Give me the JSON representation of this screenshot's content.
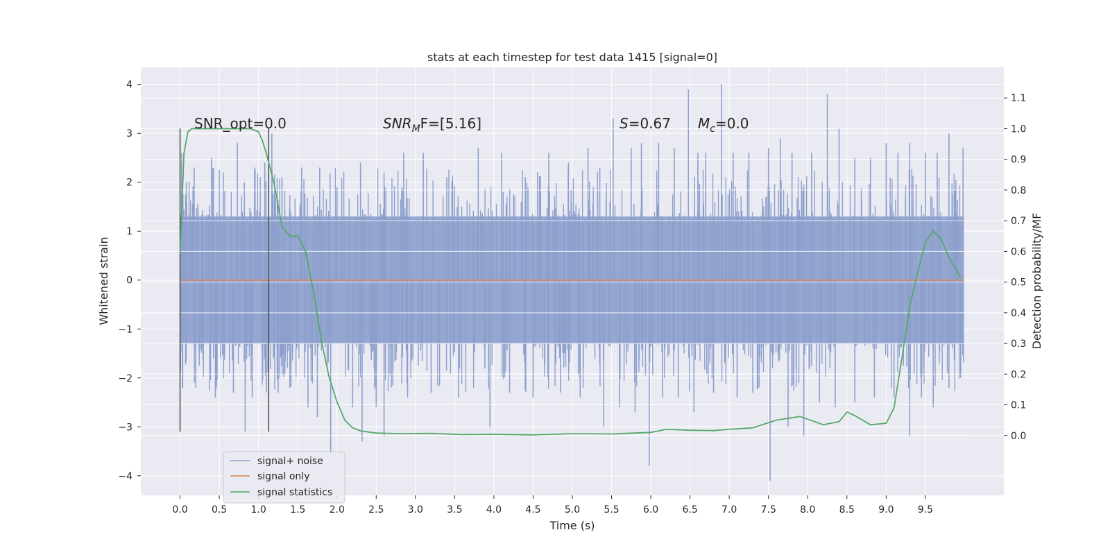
{
  "chart_data": {
    "type": "line",
    "title": "stats at each timestep for test data 1415 [signal=0]",
    "xlabel": "Time (s)",
    "ylabel_left": "Whitened strain",
    "ylabel_right": "Detection probability/MF",
    "xlim": [
      -0.5,
      10.5
    ],
    "ylim_left": [
      -4.4,
      4.35
    ],
    "ylim_right": [
      -0.195,
      1.2
    ],
    "x_ticks": [
      "0.0",
      "0.5",
      "1.0",
      "1.5",
      "2.0",
      "2.5",
      "3.0",
      "3.5",
      "4.0",
      "4.5",
      "5.0",
      "5.5",
      "6.0",
      "6.5",
      "7.0",
      "7.5",
      "8.0",
      "8.5",
      "9.0",
      "9.5"
    ],
    "y_ticks_left": [
      "4",
      "3",
      "2",
      "1",
      "0",
      "−1",
      "−2",
      "−3",
      "−4"
    ],
    "y_ticks_right": [
      "1.1",
      "1.0",
      "0.9",
      "0.8",
      "0.7",
      "0.6",
      "0.5",
      "0.4",
      "0.3",
      "0.2",
      "0.1",
      "0.0"
    ],
    "grid": true,
    "legend_position": "lower-left",
    "annotations": {
      "snr_opt": "SNR_opt=0.0",
      "snr_mf_main": "SNR",
      "snr_mf_sub": "M",
      "snr_mf_rest": "F=[5.16]",
      "s_main": "S",
      "s_rest": "=0.67",
      "mc_main": "M",
      "mc_sub": "c",
      "mc_rest": "=0.0"
    },
    "vertical_markers": [
      0.0,
      1.13
    ],
    "series": [
      {
        "name": "signal+ noise",
        "color": "#8c9fcc",
        "x_range": [
          0.0,
          9.99
        ],
        "band": [
          -1.3,
          1.3
        ],
        "spikes_up": [
          [
            0.02,
            2.6
          ],
          [
            0.08,
            2.0
          ],
          [
            0.18,
            2.3
          ],
          [
            0.4,
            2.5
          ],
          [
            0.55,
            2.2
          ],
          [
            0.73,
            2.8
          ],
          [
            0.82,
            2.0
          ],
          [
            0.95,
            2.3
          ],
          [
            1.08,
            2.4
          ],
          [
            1.17,
            3.0
          ],
          [
            1.3,
            2.1
          ],
          [
            1.55,
            2.3
          ],
          [
            1.78,
            2.3
          ],
          [
            2.0,
            1.9
          ],
          [
            2.3,
            2.4
          ],
          [
            2.6,
            2.2
          ],
          [
            2.85,
            2.6
          ],
          [
            3.1,
            2.6
          ],
          [
            3.4,
            2.1
          ],
          [
            3.8,
            2.7
          ],
          [
            4.1,
            2.6
          ],
          [
            4.4,
            2.1
          ],
          [
            4.7,
            2.6
          ],
          [
            4.95,
            2.4
          ],
          [
            5.2,
            2.7
          ],
          [
            5.35,
            2.3
          ],
          [
            5.52,
            3.3
          ],
          [
            5.75,
            2.7
          ],
          [
            5.88,
            2.8
          ],
          [
            6.1,
            2.8
          ],
          [
            6.3,
            2.7
          ],
          [
            6.48,
            3.9
          ],
          [
            6.6,
            2.6
          ],
          [
            6.7,
            2.6
          ],
          [
            6.9,
            4.0
          ],
          [
            7.05,
            2.6
          ],
          [
            7.25,
            2.6
          ],
          [
            7.5,
            2.7
          ],
          [
            7.65,
            2.9
          ],
          [
            7.8,
            2.6
          ],
          [
            8.05,
            2.6
          ],
          [
            8.25,
            3.8
          ],
          [
            8.4,
            3.1
          ],
          [
            8.6,
            2.5
          ],
          [
            8.8,
            2.5
          ],
          [
            9.0,
            2.8
          ],
          [
            9.15,
            2.6
          ],
          [
            9.3,
            2.8
          ],
          [
            9.5,
            2.6
          ],
          [
            9.65,
            2.6
          ],
          [
            9.8,
            3.0
          ],
          [
            9.98,
            2.7
          ]
        ],
        "spikes_down": [
          [
            0.03,
            -2.2
          ],
          [
            0.2,
            -2.2
          ],
          [
            0.45,
            -2.4
          ],
          [
            0.68,
            -2.3
          ],
          [
            0.83,
            -3.1
          ],
          [
            0.92,
            -2.4
          ],
          [
            1.1,
            -2.3
          ],
          [
            1.25,
            -2.3
          ],
          [
            1.4,
            -2.2
          ],
          [
            1.63,
            -2.6
          ],
          [
            1.75,
            -2.8
          ],
          [
            1.92,
            -3.5
          ],
          [
            2.2,
            -2.6
          ],
          [
            2.32,
            -3.3
          ],
          [
            2.5,
            -2.6
          ],
          [
            2.6,
            -3.2
          ],
          [
            2.9,
            -2.4
          ],
          [
            3.2,
            -2.3
          ],
          [
            3.55,
            -2.4
          ],
          [
            3.95,
            -3.0
          ],
          [
            4.2,
            -2.3
          ],
          [
            4.5,
            -2.4
          ],
          [
            4.85,
            -2.3
          ],
          [
            5.1,
            -2.4
          ],
          [
            5.4,
            -3.0
          ],
          [
            5.6,
            -2.6
          ],
          [
            5.8,
            -2.7
          ],
          [
            5.98,
            -3.8
          ],
          [
            6.15,
            -2.4
          ],
          [
            6.35,
            -2.4
          ],
          [
            6.55,
            -2.7
          ],
          [
            6.8,
            -2.3
          ],
          [
            7.1,
            -2.4
          ],
          [
            7.3,
            -2.3
          ],
          [
            7.52,
            -4.1
          ],
          [
            7.75,
            -3.0
          ],
          [
            7.95,
            -3.2
          ],
          [
            8.15,
            -2.5
          ],
          [
            8.35,
            -2.6
          ],
          [
            8.6,
            -2.5
          ],
          [
            8.85,
            -2.4
          ],
          [
            9.1,
            -2.4
          ],
          [
            9.3,
            -3.2
          ],
          [
            9.45,
            -2.4
          ],
          [
            9.6,
            -2.6
          ],
          [
            9.8,
            -2.2
          ],
          [
            9.95,
            -2.0
          ]
        ]
      },
      {
        "name": "signal only",
        "color": "#dd8452",
        "x": [
          0.0,
          9.99
        ],
        "y": [
          0.0,
          0.0
        ]
      },
      {
        "name": "signal statistics",
        "color": "#55a868",
        "axis": "right",
        "x": [
          0.0,
          0.05,
          0.1,
          0.15,
          0.3,
          0.6,
          0.8,
          0.9,
          1.0,
          1.05,
          1.1,
          1.2,
          1.3,
          1.4,
          1.5,
          1.6,
          1.7,
          1.8,
          1.9,
          2.0,
          2.1,
          2.2,
          2.3,
          2.5,
          2.8,
          3.2,
          3.6,
          4.0,
          4.5,
          5.0,
          5.5,
          6.0,
          6.2,
          6.5,
          6.8,
          7.0,
          7.3,
          7.6,
          7.9,
          8.2,
          8.4,
          8.5,
          8.6,
          8.8,
          9.0,
          9.1,
          9.2,
          9.3,
          9.4,
          9.5,
          9.6,
          9.7,
          9.8,
          9.95
        ],
        "y": [
          0.59,
          0.92,
          0.99,
          1.0,
          1.0,
          1.0,
          1.0,
          1.0,
          0.99,
          0.96,
          0.92,
          0.82,
          0.68,
          0.65,
          0.65,
          0.6,
          0.47,
          0.31,
          0.19,
          0.11,
          0.05,
          0.025,
          0.015,
          0.008,
          0.006,
          0.007,
          0.003,
          0.004,
          0.002,
          0.006,
          0.005,
          0.01,
          0.02,
          0.017,
          0.016,
          0.02,
          0.025,
          0.05,
          0.062,
          0.035,
          0.045,
          0.076,
          0.065,
          0.035,
          0.04,
          0.09,
          0.25,
          0.42,
          0.53,
          0.63,
          0.667,
          0.64,
          0.58,
          0.515
        ]
      }
    ]
  }
}
